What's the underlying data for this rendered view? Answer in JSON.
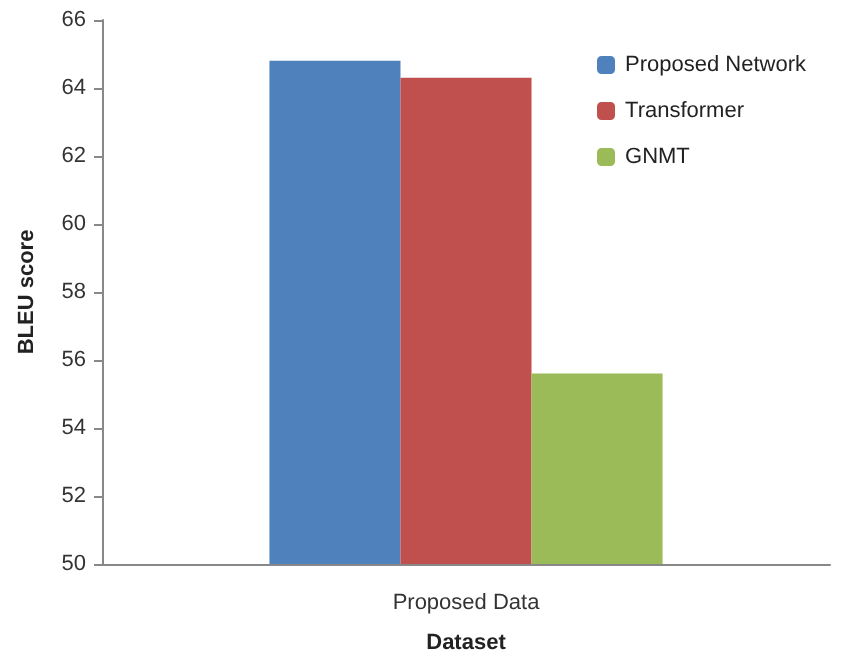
{
  "chart_data": {
    "type": "bar",
    "xlabel": "Dataset",
    "ylabel": "BLEU score",
    "categories": [
      "Proposed Data"
    ],
    "series": [
      {
        "name": "Proposed Network",
        "color": "#4f81bd",
        "values": [
          64.8
        ]
      },
      {
        "name": "Transformer",
        "color": "#c0504d",
        "values": [
          64.3
        ]
      },
      {
        "name": "GNMT",
        "color": "#9bbb59",
        "values": [
          55.6
        ]
      }
    ],
    "ylim": [
      50,
      66
    ],
    "yticks": [
      50,
      52,
      54,
      56,
      58,
      60,
      62,
      64,
      66
    ],
    "grid": false,
    "legend": "top right"
  }
}
